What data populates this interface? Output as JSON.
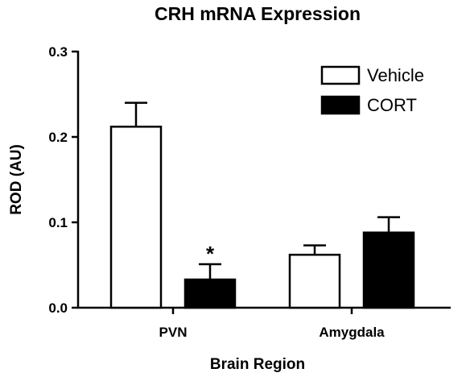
{
  "chart_data": {
    "type": "bar",
    "title": "CRH mRNA Expression",
    "xlabel": "Brain Region",
    "ylabel": "ROD (AU)",
    "categories": [
      "PVN",
      "Amygdala"
    ],
    "series": [
      {
        "name": "Vehicle",
        "values": [
          0.212,
          0.062
        ],
        "errors": [
          0.028,
          0.011
        ],
        "color": "#ffffff"
      },
      {
        "name": "CORT",
        "values": [
          0.033,
          0.088
        ],
        "errors": [
          0.018,
          0.018
        ],
        "color": "#000000"
      }
    ],
    "ylim": [
      0,
      0.3
    ],
    "yticks": [
      "0.0",
      "0.1",
      "0.2",
      "0.3"
    ],
    "annotations": [
      {
        "text": "*",
        "category": "PVN",
        "series": "CORT"
      }
    ],
    "legend_position": "top-right",
    "grid": false
  }
}
